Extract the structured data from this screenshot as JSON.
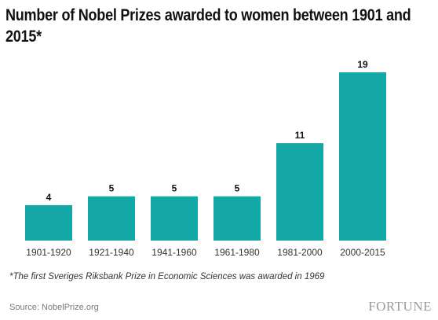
{
  "title": "Number of Nobel Prizes awarded to women between 1901 and 2015*",
  "footnote": "*The first Sveriges Riksbank Prize in Economic Sciences was awarded in 1969",
  "source": "Source: NobelPrize.org",
  "brand": "FORTUNE",
  "colors": {
    "bar": "#13a8a6",
    "label": "#111111",
    "axis": "#333333"
  },
  "chart_data": {
    "type": "bar",
    "categories": [
      "1901-1920",
      "1921-1940",
      "1941-1960",
      "1961-1980",
      "1981-2000",
      "2000-2015"
    ],
    "values": [
      4,
      5,
      5,
      5,
      11,
      19
    ],
    "title": "Number of Nobel Prizes awarded to women between 1901 and 2015*",
    "xlabel": "",
    "ylabel": "",
    "ylim": [
      0,
      19
    ],
    "grid": false,
    "legend": "none",
    "data_labels": true
  }
}
